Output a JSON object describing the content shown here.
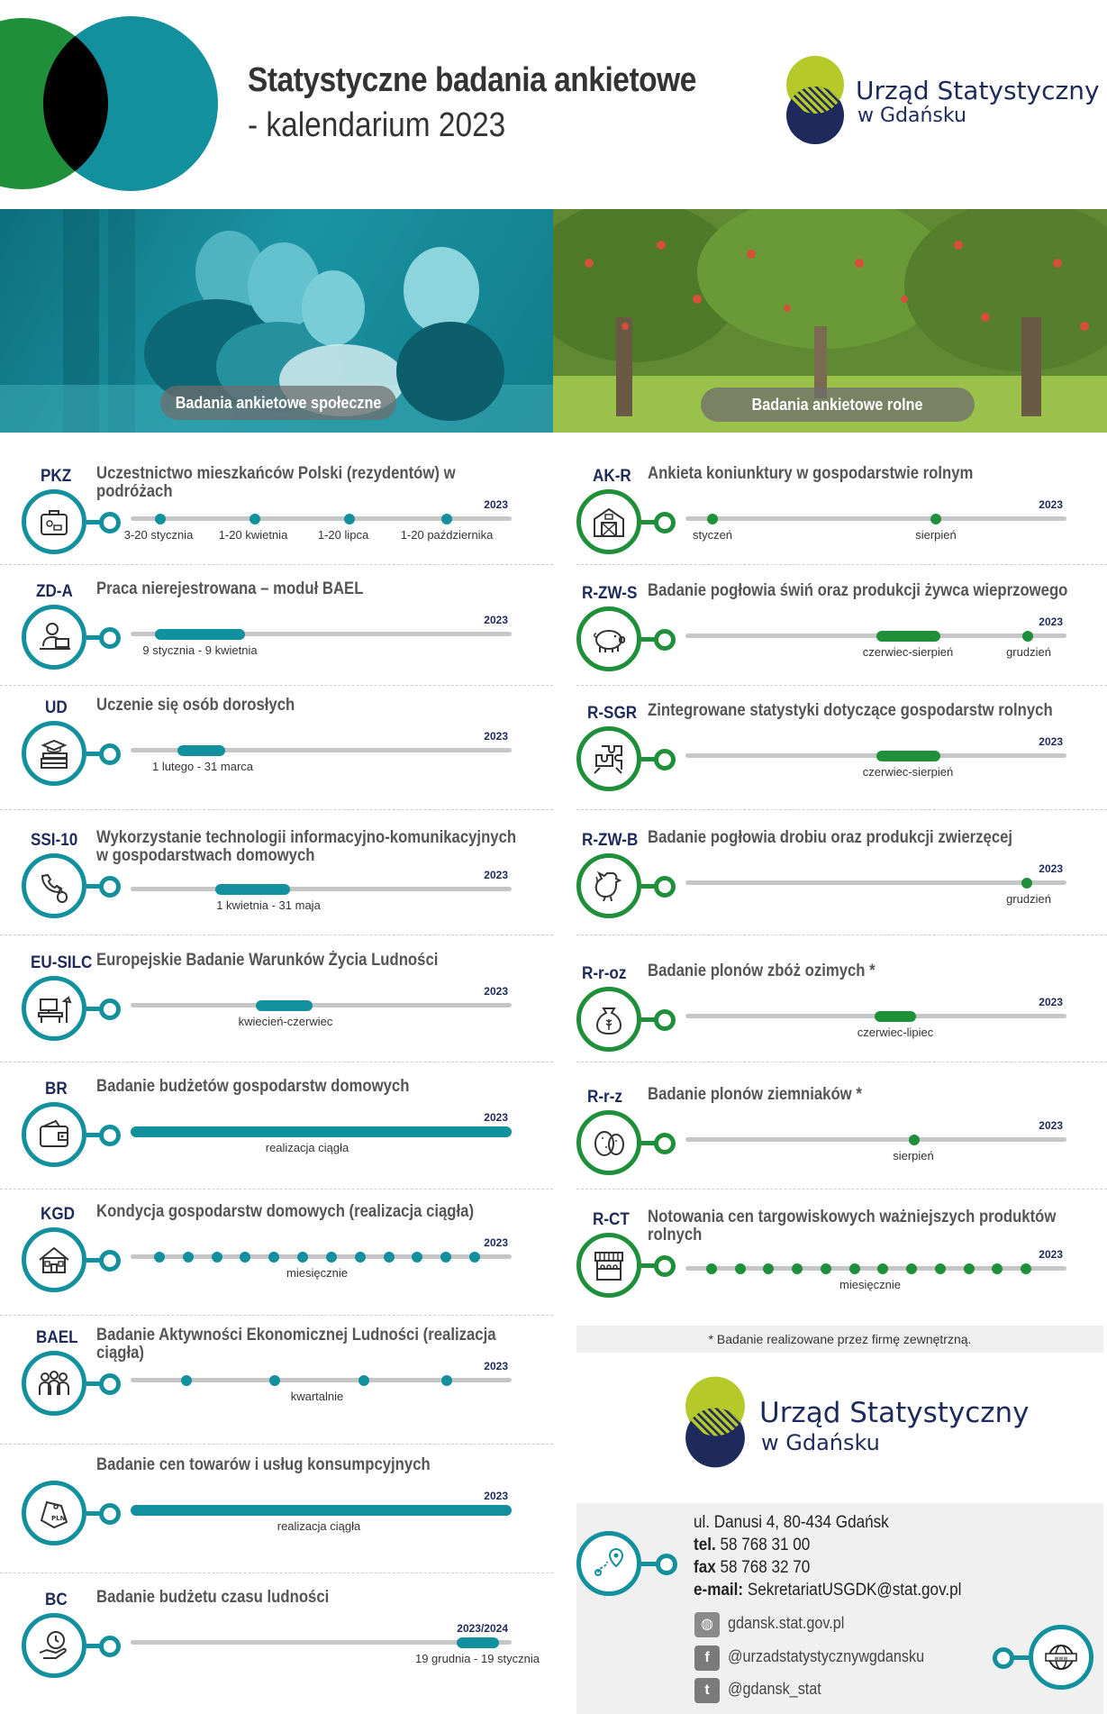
{
  "header": {
    "title_line1": "Statystyczne badania ankietowe",
    "title_line2": "- kalendarium 2023",
    "logo_line1": "Urząd Statystyczny",
    "logo_line2": "w Gdańsku"
  },
  "colors": {
    "teal": "#13909e",
    "green": "#1f8f3a",
    "navy": "#1f2a5c",
    "lime": "#b5c92a",
    "grey_track": "#c6c6c6"
  },
  "photos": {
    "left_label": "Badania ankietowe społeczne",
    "right_label": "Badania ankietowe rolne"
  },
  "social_surveys": [
    {
      "code": "PKZ",
      "title": "Uczestnictwo mieszkańców Polski (rezydentów) w podróżach",
      "icon": "suitcase-icon",
      "year": "2023",
      "labels": [
        "3-20 stycznia",
        "1-20 kwietnia",
        "1-20 lipca",
        "1-20 października"
      ]
    },
    {
      "code": "ZD-A",
      "title": "Praca nierejestrowana – moduł BAEL",
      "icon": "worker-laptop-icon",
      "year": "2023",
      "labels": [
        "9 stycznia - 9 kwietnia"
      ]
    },
    {
      "code": "UD",
      "title": "Uczenie się osób dorosłych",
      "icon": "books-graduation-icon",
      "year": "2023",
      "labels": [
        "1 lutego - 31 marca"
      ]
    },
    {
      "code": "SSI-10",
      "title": "Wykorzystanie technologii informacyjno-komunikacyjnych w gospodarstwach domowych",
      "icon": "phone-mouse-icon",
      "year": "2023",
      "labels": [
        "1 kwietnia - 31 maja"
      ]
    },
    {
      "code": "EU-SILC",
      "title": "Europejskie Badanie Warunków Życia Ludności",
      "icon": "desk-lamp-icon",
      "year": "2023",
      "labels": [
        "kwiecień-czerwiec"
      ]
    },
    {
      "code": "BR",
      "title": "Badanie budżetów gospodarstw domowych",
      "icon": "wallet-icon",
      "year": "2023",
      "labels": [
        "realizacja ciągła"
      ]
    },
    {
      "code": "KGD",
      "title": "Kondycja gospodarstw domowych (realizacja ciągła)",
      "icon": "house-icon",
      "year": "2023",
      "labels": [
        "miesięcznie"
      ]
    },
    {
      "code": "BAEL",
      "title": "Badanie Aktywności Ekonomicznej Ludności (realizacja ciągła)",
      "icon": "people-group-icon",
      "year": "2023",
      "labels": [
        "kwartalnie"
      ]
    },
    {
      "code": "",
      "title": "Badanie cen towarów i usług konsumpcyjnych",
      "icon": "price-tag-pln-icon",
      "year": "2023",
      "labels": [
        "realizacja ciągła"
      ]
    },
    {
      "code": "BC",
      "title": "Badanie budżetu czasu ludności",
      "icon": "clock-hand-icon",
      "year": "2023/2024",
      "labels": [
        "19 grudnia - 19 stycznia"
      ]
    }
  ],
  "agri_surveys": [
    {
      "code": "AK-R",
      "title": "Ankieta koniunktury w gospodarstwie rolnym",
      "icon": "barn-icon",
      "year": "2023",
      "labels": [
        "styczeń",
        "sierpień"
      ]
    },
    {
      "code": "R-ZW-S",
      "title": "Badanie pogłowia świń oraz produkcji żywca wieprzowego",
      "icon": "pig-icon",
      "year": "2023",
      "labels": [
        "czerwiec-sierpień",
        "grudzień"
      ]
    },
    {
      "code": "R-SGR",
      "title": "Zintegrowane statystyki dotyczące gospodarstw rolnych",
      "icon": "puzzle-hands-icon",
      "year": "2023",
      "labels": [
        "czerwiec-sierpień"
      ]
    },
    {
      "code": "R-ZW-B",
      "title": "Badanie pogłowia drobiu oraz produkcji zwierzęcej",
      "icon": "rooster-icon",
      "year": "2023",
      "labels": [
        "grudzień"
      ]
    },
    {
      "code": "R-r-oz",
      "title": "Badanie plonów zbóż ozimych *",
      "icon": "grain-sack-icon",
      "year": "2023",
      "labels": [
        "czerwiec-lipiec"
      ]
    },
    {
      "code": "R-r-z",
      "title": "Badanie plonów ziemniaków *",
      "icon": "potato-icon",
      "year": "2023",
      "labels": [
        "sierpień"
      ]
    },
    {
      "code": "R-CT",
      "title": "Notowania cen targowiskowych ważniejszych produktów rolnych",
      "icon": "market-stall-icon",
      "year": "2023",
      "labels": [
        "miesięcznie"
      ]
    }
  ],
  "footnote": "* Badanie realizowane przez firmę zewnętrzną.",
  "contact": {
    "address": "ul. Danusi 4, 80-434 Gdańsk",
    "tel_label": "tel.",
    "tel": "58 768 31 00",
    "fax_label": "fax",
    "fax": "58 768 32 70",
    "email_label": "e-mail:",
    "email": "SekretariatUSGDK@stat.gov.pl",
    "website": "gdansk.stat.gov.pl",
    "facebook": "@urzadstatystycznywgdansku",
    "twitter": "@gdansk_stat"
  }
}
